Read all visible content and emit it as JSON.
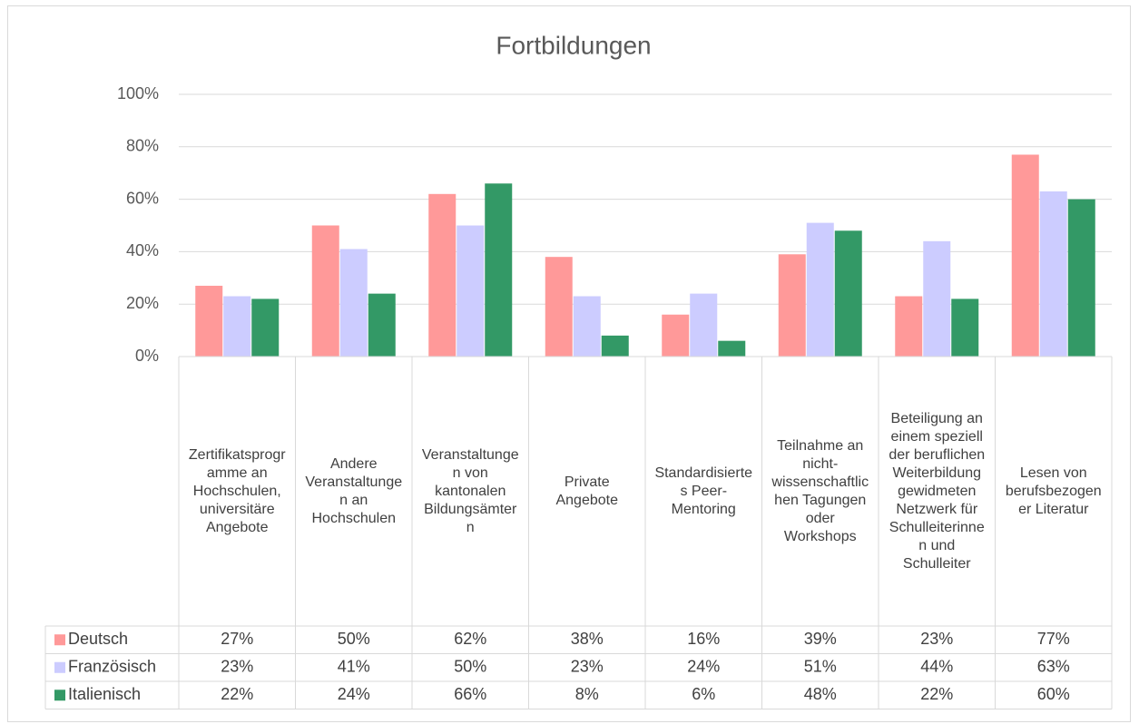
{
  "chart_data": {
    "type": "bar",
    "title": "Fortbildungen",
    "categories": [
      "Zertifikatsprogramme an Hochschulen, universitäre Angebote",
      "Andere Veranstaltungen an Hochschulen",
      "Veranstaltungen von kantonalen Bildungsämtern",
      "Private Angebote",
      "Standardisiertes Peer-Mentoring",
      "Teilnahme an nicht-wissenschaftlichen Tagungen oder Workshops",
      "Beteiligung an einem speziell der beruflichen Weiterbildung gewidmeten Netzwerk für Schulleiterinnen und Schulleiter",
      "Lesen von berufsbezogener Literatur"
    ],
    "series": [
      {
        "name": "Deutsch",
        "color": "#ff9999",
        "values": [
          27,
          50,
          62,
          38,
          16,
          39,
          23,
          77
        ],
        "value_labels": [
          "27%",
          "50%",
          "62%",
          "38%",
          "16%",
          "39%",
          "23%",
          "77%"
        ]
      },
      {
        "name": "Französisch",
        "color": "#ccccff",
        "values": [
          23,
          41,
          50,
          23,
          24,
          51,
          44,
          63
        ],
        "value_labels": [
          "23%",
          "41%",
          "50%",
          "23%",
          "24%",
          "51%",
          "44%",
          "63%"
        ]
      },
      {
        "name": "Italienisch",
        "color": "#339966",
        "values": [
          22,
          24,
          66,
          8,
          6,
          48,
          22,
          60
        ],
        "value_labels": [
          "22%",
          "24%",
          "66%",
          "8%",
          "6%",
          "48%",
          "22%",
          "60%"
        ]
      }
    ],
    "ylim": [
      0,
      100
    ],
    "yticks": [
      {
        "value": 0,
        "label": "0%"
      },
      {
        "value": 20,
        "label": "20%"
      },
      {
        "value": 40,
        "label": "40%"
      },
      {
        "value": 60,
        "label": "60%"
      },
      {
        "value": 80,
        "label": "80%"
      },
      {
        "value": 100,
        "label": "100%"
      }
    ],
    "grid": true
  }
}
